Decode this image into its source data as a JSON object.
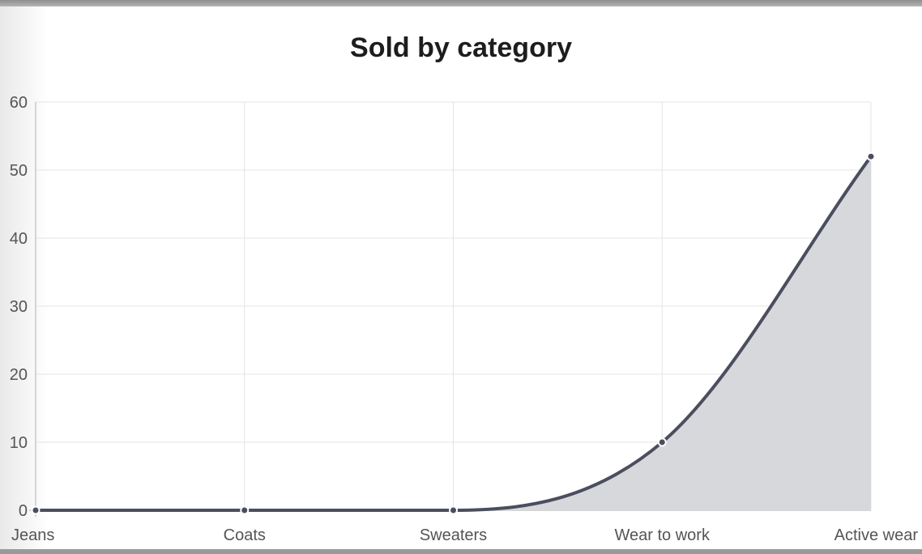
{
  "chart_data": {
    "type": "area",
    "title": "Sold by category",
    "xlabel": "",
    "ylabel": "",
    "categories": [
      "Jeans",
      "Coats",
      "Sweaters",
      "Wear to work",
      "Active wear"
    ],
    "series": [
      {
        "values": [
          0,
          0,
          0,
          10,
          52
        ]
      }
    ],
    "ylim": [
      0,
      60
    ],
    "yticks": [
      "0",
      "10",
      "20",
      "30",
      "40",
      "50",
      "60"
    ],
    "grid": true,
    "legend": "none",
    "colors": {
      "line": "#4a4e5e",
      "fill": "#d7d8dc",
      "grid": "#e4e4e4",
      "axis": "#c8c8c8"
    }
  }
}
